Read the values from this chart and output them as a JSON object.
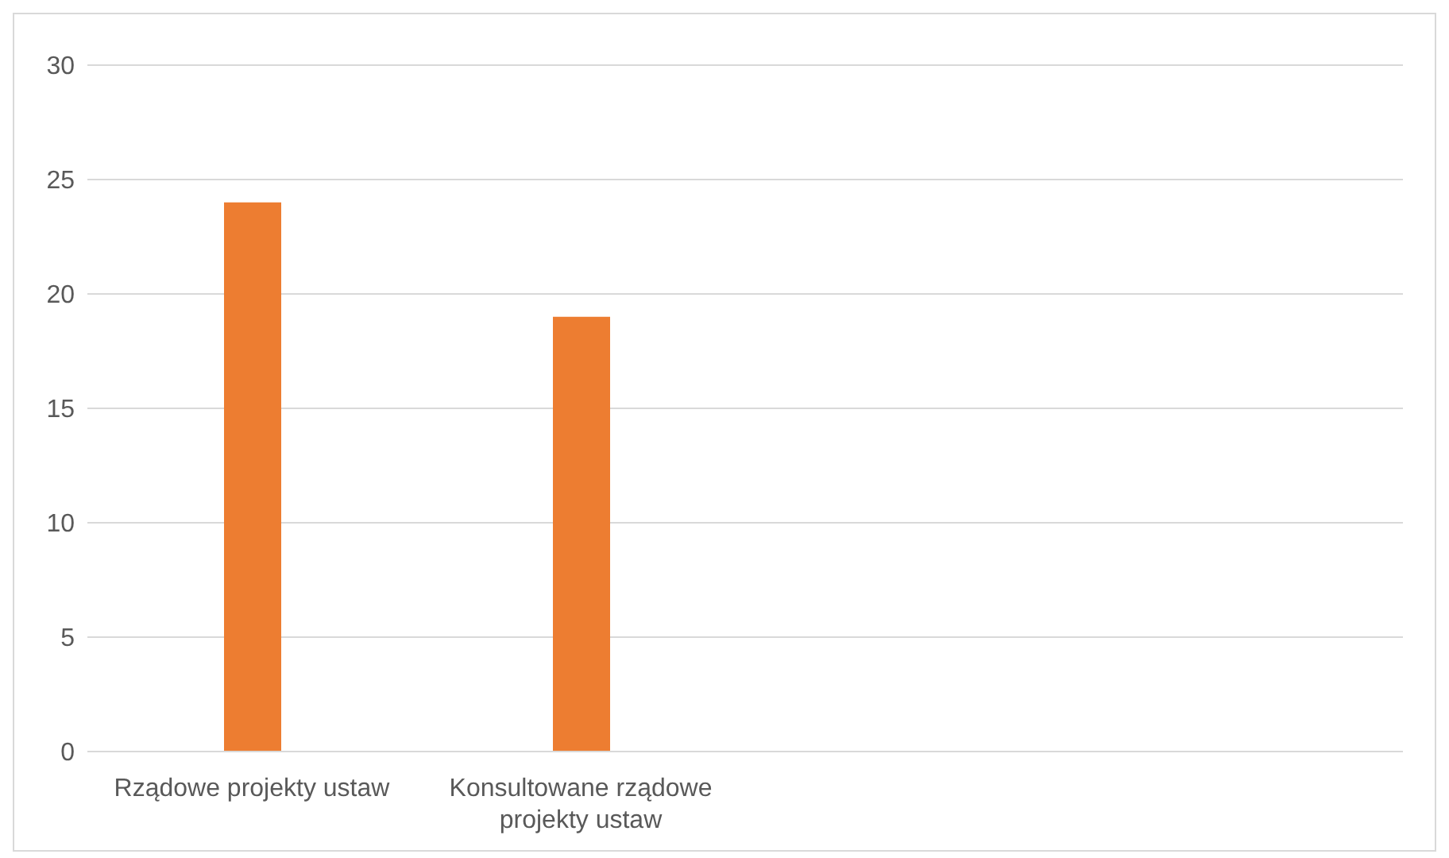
{
  "chart_data": {
    "type": "bar",
    "categories": [
      "Rządowe projekty ustaw",
      "Konsultowane rządowe projekty ustaw",
      null,
      null
    ],
    "values": [
      24,
      19,
      null,
      null
    ],
    "color": "#ed7d31",
    "ylim": [
      0,
      30
    ],
    "yticks": [
      0,
      5,
      10,
      15,
      20,
      25,
      30
    ],
    "grid": "y",
    "legend": false
  }
}
